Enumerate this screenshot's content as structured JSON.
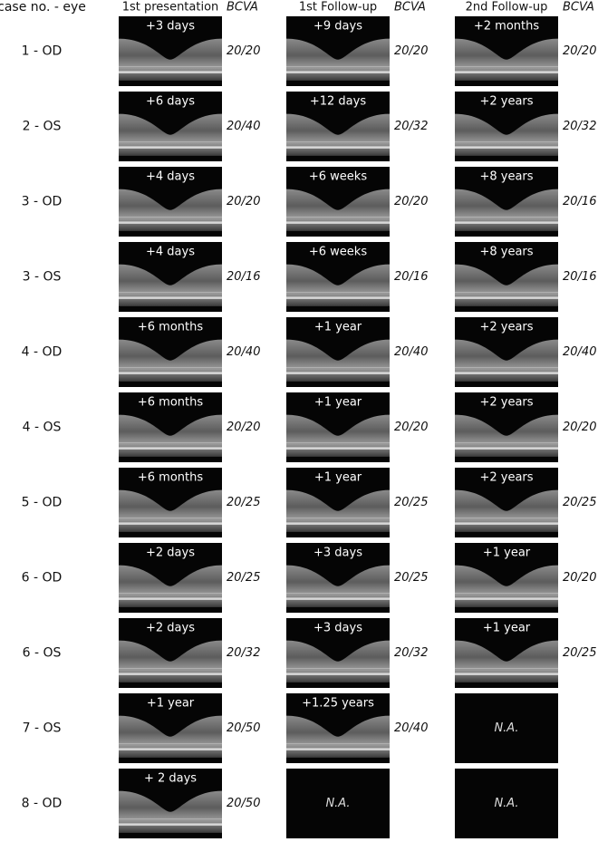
{
  "header": {
    "case": "case no. - eye",
    "columns": [
      {
        "title": "1st presentation",
        "bcva": "BCVA"
      },
      {
        "title": "1st Follow-up",
        "bcva": "BCVA"
      },
      {
        "title": "2nd Follow-up",
        "bcva": "BCVA"
      }
    ]
  },
  "rows": [
    {
      "case": "1 - OD",
      "cells": [
        {
          "time": "+3 days",
          "bcva": "20/20"
        },
        {
          "time": "+9 days",
          "bcva": "20/20"
        },
        {
          "time": "+2 months",
          "bcva": "20/20"
        }
      ]
    },
    {
      "case": "2 - OS",
      "cells": [
        {
          "time": "+6 days",
          "bcva": "20/40"
        },
        {
          "time": "+12 days",
          "bcva": "20/32"
        },
        {
          "time": "+2 years",
          "bcva": "20/32"
        }
      ]
    },
    {
      "case": "3 - OD",
      "cells": [
        {
          "time": "+4 days",
          "bcva": "20/20"
        },
        {
          "time": "+6 weeks",
          "bcva": "20/20"
        },
        {
          "time": "+8 years",
          "bcva": "20/16"
        }
      ]
    },
    {
      "case": "3 - OS",
      "cells": [
        {
          "time": "+4 days",
          "bcva": "20/16"
        },
        {
          "time": "+6 weeks",
          "bcva": "20/16"
        },
        {
          "time": "+8 years",
          "bcva": "20/16"
        }
      ]
    },
    {
      "case": "4 - OD",
      "cells": [
        {
          "time": "+6 months",
          "bcva": "20/40"
        },
        {
          "time": "+1 year",
          "bcva": "20/40"
        },
        {
          "time": "+2 years",
          "bcva": "20/40"
        }
      ]
    },
    {
      "case": "4 - OS",
      "cells": [
        {
          "time": "+6 months",
          "bcva": "20/20"
        },
        {
          "time": "+1 year",
          "bcva": "20/20"
        },
        {
          "time": "+2 years",
          "bcva": "20/20"
        }
      ]
    },
    {
      "case": "5 - OD",
      "cells": [
        {
          "time": "+6 months",
          "bcva": "20/25"
        },
        {
          "time": "+1 year",
          "bcva": "20/25"
        },
        {
          "time": "+2 years",
          "bcva": "20/25"
        }
      ]
    },
    {
      "case": "6 - OD",
      "cells": [
        {
          "time": "+2 days",
          "bcva": "20/25"
        },
        {
          "time": "+3 days",
          "bcva": "20/25"
        },
        {
          "time": "+1 year",
          "bcva": "20/20"
        }
      ]
    },
    {
      "case": "6 - OS",
      "cells": [
        {
          "time": "+2 days",
          "bcva": "20/32"
        },
        {
          "time": "+3 days",
          "bcva": "20/32"
        },
        {
          "time": "+1 year",
          "bcva": "20/25"
        }
      ]
    },
    {
      "case": "7 - OS",
      "cells": [
        {
          "time": "+1 year",
          "bcva": "20/50"
        },
        {
          "time": "+1.25 years",
          "bcva": "20/40"
        },
        {
          "na": "N.A."
        }
      ]
    },
    {
      "case": "8 - OD",
      "cells": [
        {
          "time": "+ 2 days",
          "bcva": "20/50"
        },
        {
          "na": "N.A."
        },
        {
          "na": "N.A."
        }
      ]
    }
  ]
}
